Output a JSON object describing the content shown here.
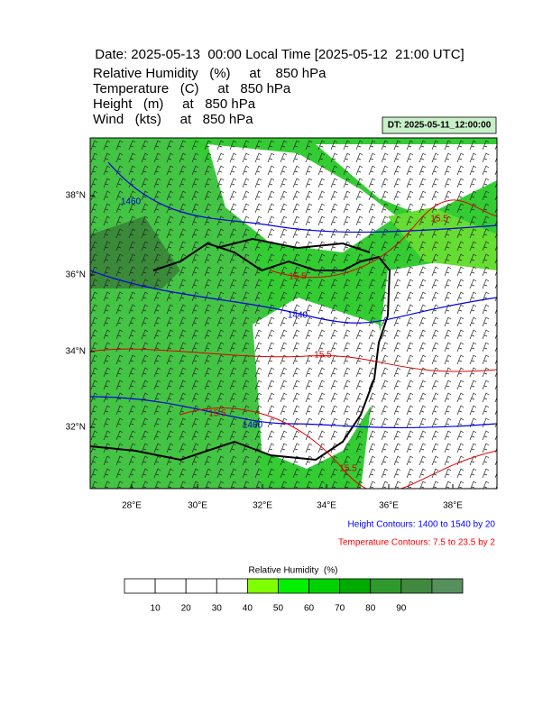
{
  "header": {
    "title": "Date: 2025-05-13  00:00 Local Time [2025-05-12  21:00 UTC]",
    "fields": [
      "Relative Humidity   (%)     at    850 hPa",
      "Temperature   (C)     at   850 hPa",
      "Height   (m)     at   850 hPa",
      "Wind   (kts)     at   850 hPa"
    ],
    "dt": "DT: 2025-05-11_12:00:00"
  },
  "map": {
    "lon_ticks": [
      "28°E",
      "30°E",
      "32°E",
      "34°E",
      "36°E",
      "38°E"
    ],
    "lat_ticks": [
      "38°N",
      "36°N",
      "34°N",
      "32°N"
    ],
    "height_labels": [
      "1460",
      "1440",
      "1460"
    ],
    "temperature_labels": [
      "15.5",
      "15.5",
      "15.5",
      "15.5",
      "15.5"
    ]
  },
  "notes": {
    "height": "Height Contours: 1400 to 1540 by 20",
    "temperature": "Temperature Contours: 7.5 to 23.5 by 2"
  },
  "colorbar": {
    "title": "Relative Humidity  (%)",
    "labels": [
      "10",
      "20",
      "30",
      "40",
      "50",
      "60",
      "70",
      "80",
      "90"
    ],
    "colors": [
      "#ffffff",
      "#ffffff",
      "#ffffff",
      "#ffffff",
      "#80ff00",
      "#00f000",
      "#00d200",
      "#00aa00",
      "#2e9a2e",
      "#3f8a3f",
      "#55905d"
    ]
  }
}
